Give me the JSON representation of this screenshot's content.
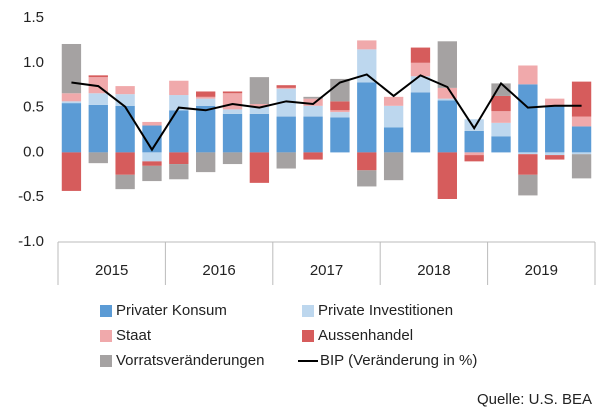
{
  "chart_data": {
    "type": "bar",
    "source": "Quelle: U.S. BEA",
    "groups": [
      "2015",
      "2016",
      "2017",
      "2018",
      "2019"
    ],
    "categories": [
      null,
      null,
      null,
      null,
      null,
      null,
      null,
      null,
      null,
      null,
      null,
      null,
      null,
      null,
      null,
      null,
      null,
      null,
      null,
      null
    ],
    "stacked": true,
    "series": [
      {
        "name": "Privater Konsum",
        "color": "#5b9bd5",
        "values": [
          0.55,
          0.53,
          0.52,
          0.3,
          0.47,
          0.52,
          0.43,
          0.43,
          0.4,
          0.4,
          0.39,
          0.78,
          0.28,
          0.67,
          0.58,
          0.24,
          0.18,
          0.76,
          0.52,
          0.29
        ]
      },
      {
        "name": "Private Investitionen",
        "color": "#bdd7ee",
        "values": [
          0.02,
          0.13,
          0.13,
          -0.1,
          0.17,
          0.08,
          0.05,
          0.08,
          0.31,
          0.12,
          0.06,
          0.37,
          0.24,
          0.18,
          0.02,
          0.13,
          0.15,
          -0.02,
          -0.03,
          -0.02
        ]
      },
      {
        "name": "Staat",
        "color": "#f0a9ab",
        "values": [
          0.09,
          0.18,
          0.09,
          0.04,
          0.16,
          0.02,
          0.18,
          0.03,
          0.01,
          0.08,
          0.02,
          0.1,
          0.1,
          0.15,
          0.12,
          -0.03,
          0.13,
          0.21,
          0.08,
          0.11
        ]
      },
      {
        "name": "Aussenhandel",
        "color": "#d65c5c",
        "values": [
          -0.43,
          0.02,
          -0.25,
          -0.05,
          -0.13,
          0.06,
          0.02,
          -0.34,
          0.03,
          -0.08,
          0.1,
          -0.2,
          0.0,
          0.17,
          -0.52,
          -0.07,
          0.17,
          -0.23,
          -0.05,
          0.39
        ]
      },
      {
        "name": "Vorratsveränderungen",
        "color": "#a5a2a2",
        "values": [
          0.55,
          -0.12,
          -0.16,
          -0.17,
          -0.17,
          -0.22,
          -0.13,
          0.3,
          -0.18,
          0.02,
          0.25,
          -0.18,
          -0.31,
          0.0,
          0.52,
          0.0,
          0.14,
          -0.23,
          0.0,
          -0.27
        ]
      }
    ],
    "line": {
      "name": "BIP (Veränderung in %)",
      "color": "#000000",
      "values": [
        0.78,
        0.74,
        0.51,
        0.03,
        0.5,
        0.47,
        0.54,
        0.5,
        0.57,
        0.54,
        0.78,
        0.87,
        0.63,
        0.86,
        0.73,
        0.27,
        0.77,
        0.5,
        0.52,
        0.52
      ]
    },
    "ylim": [
      -1.0,
      1.5
    ],
    "yticks": [
      {
        "value": -1.0,
        "label": "-1.0"
      },
      {
        "value": -0.5,
        "label": "-0.5"
      },
      {
        "value": 0.0,
        "label": "0.0"
      },
      {
        "value": 0.5,
        "label": "0.5"
      },
      {
        "value": 1.0,
        "label": "1.0"
      },
      {
        "value": 1.5,
        "label": "1.5"
      }
    ],
    "grid": false
  }
}
